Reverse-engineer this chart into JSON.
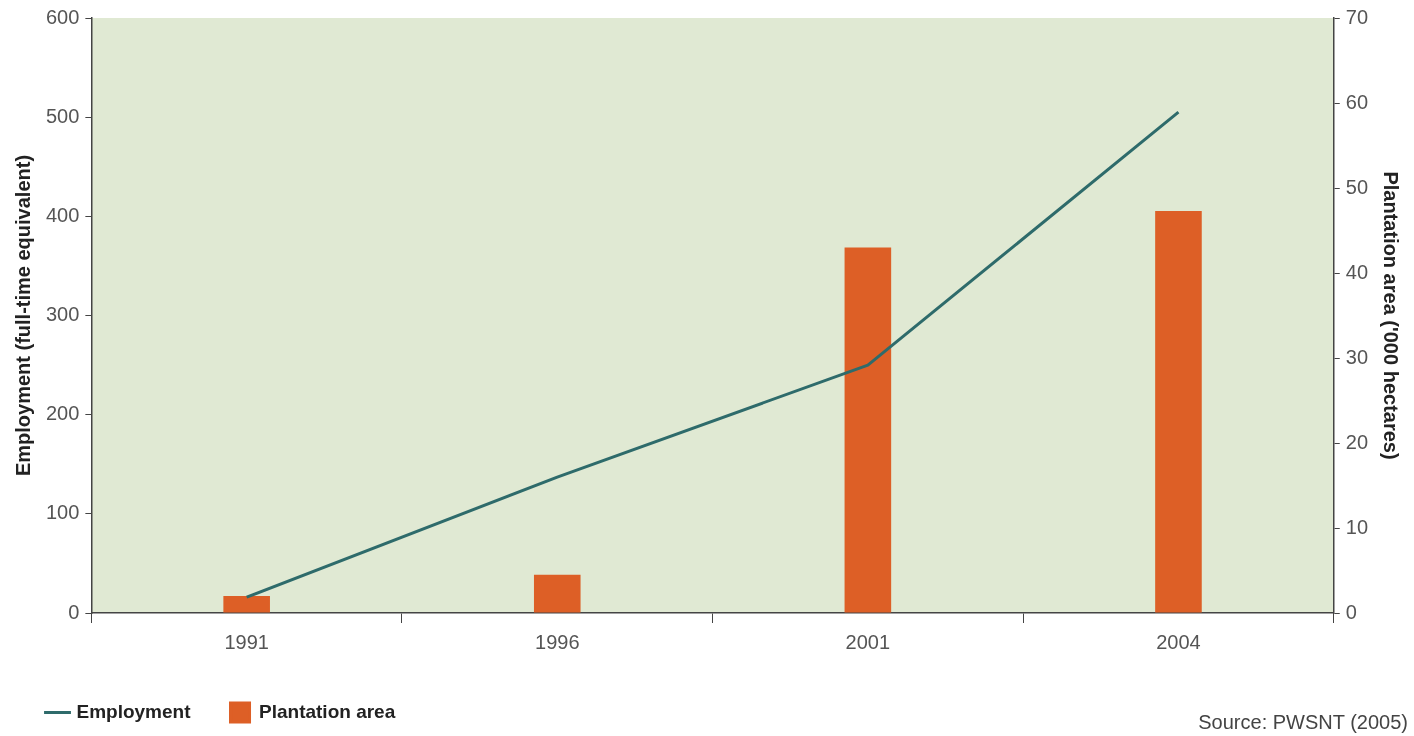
{
  "chart_data": {
    "type": "bar",
    "categories": [
      "1991",
      "1996",
      "2001",
      "2004"
    ],
    "ylabel": "Employment (full-time equivalent)",
    "y2label": "Plantation area ('000 hectares)",
    "ylim": [
      0,
      600
    ],
    "yticks": [
      0,
      100,
      200,
      300,
      400,
      500,
      600
    ],
    "y2lim": [
      0,
      70
    ],
    "y2ticks": [
      0,
      10,
      20,
      30,
      40,
      50,
      60,
      70
    ],
    "series": [
      {
        "name": "Employment",
        "type": "line",
        "color": "#2e6b6b",
        "values": [
          16,
          137,
          250,
          505
        ]
      },
      {
        "name": "Plantation area",
        "axis": "y2",
        "color": "#dd5f26",
        "values": [
          2,
          4.5,
          43,
          47.3
        ]
      }
    ],
    "legend": "bottom left",
    "grid": false,
    "marker": "none",
    "annotations": [
      "Source: PWSNT (2005)"
    ]
  }
}
